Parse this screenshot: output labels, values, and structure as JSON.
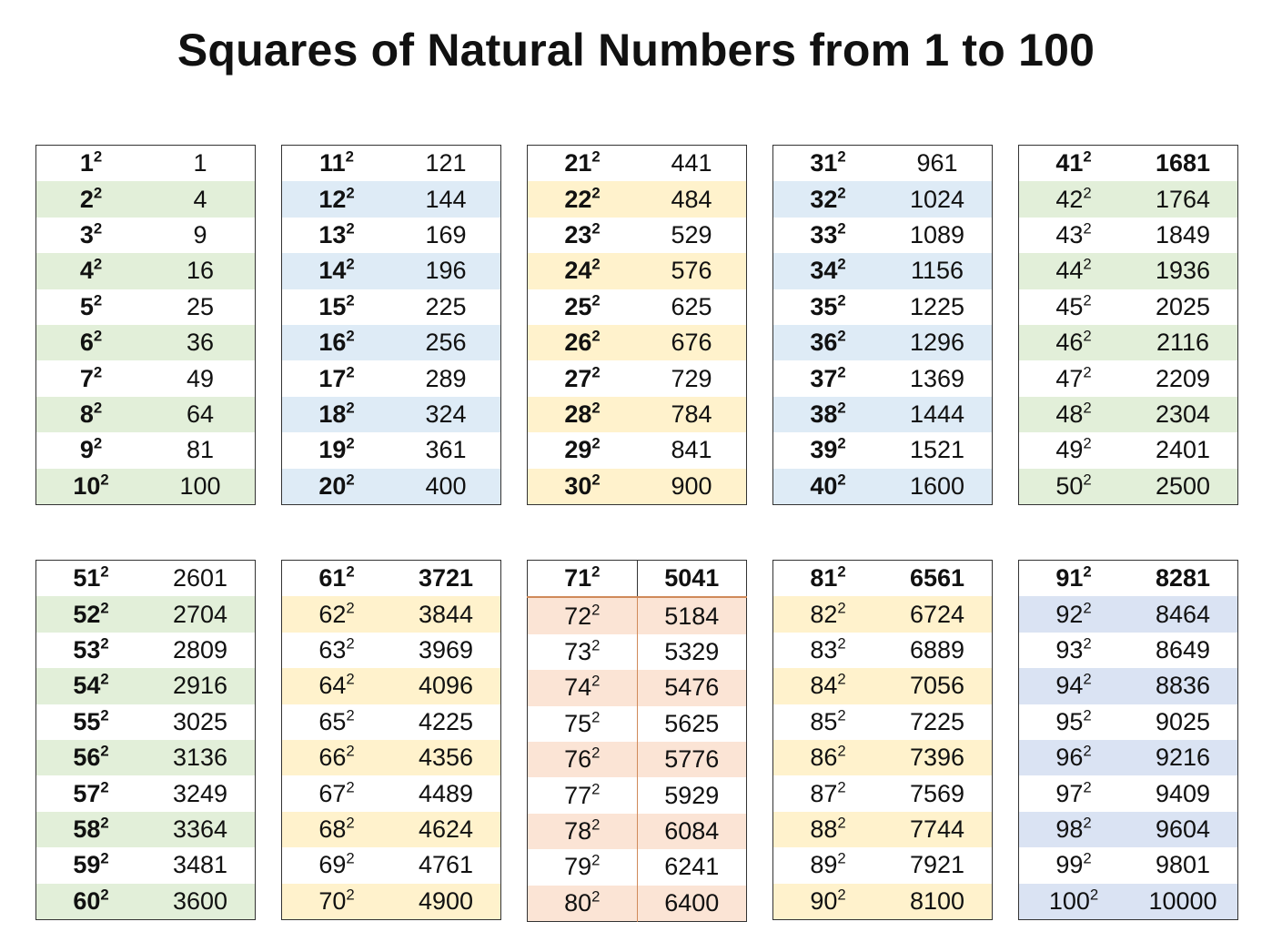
{
  "title": "Squares of Natural Numbers from 1 to 100",
  "colors": {
    "green": "#e2efd9",
    "blue": "#deebf6",
    "yellow": "#fff2cc",
    "salmon": "#fbe4d5"
  },
  "tables": [
    {
      "stripe": "#e2efd9",
      "boldnums": true,
      "rows": [
        [
          "1",
          "2",
          "1"
        ],
        [
          "2",
          "2",
          "4"
        ],
        [
          "3",
          "2",
          "9"
        ],
        [
          "4",
          "2",
          "16"
        ],
        [
          "5",
          "2",
          "25"
        ],
        [
          "6",
          "2",
          "36"
        ],
        [
          "7",
          "2",
          "49"
        ],
        [
          "8",
          "2",
          "64"
        ],
        [
          "9",
          "2",
          "81"
        ],
        [
          "10",
          "2",
          "100"
        ]
      ]
    },
    {
      "stripe": "#deebf6",
      "boldnums": true,
      "rows": [
        [
          "11",
          "2",
          "121"
        ],
        [
          "12",
          "2",
          "144"
        ],
        [
          "13",
          "2",
          "169"
        ],
        [
          "14",
          "2",
          "196"
        ],
        [
          "15",
          "2",
          "225"
        ],
        [
          "16",
          "2",
          "256"
        ],
        [
          "17",
          "2",
          "289"
        ],
        [
          "18",
          "2",
          "324"
        ],
        [
          "19",
          "2",
          "361"
        ],
        [
          "20",
          "2",
          "400"
        ]
      ]
    },
    {
      "stripe": "#fff2cc",
      "boldnums": true,
      "rows": [
        [
          "21",
          "2",
          "441"
        ],
        [
          "22",
          "2",
          "484"
        ],
        [
          "23",
          "2",
          "529"
        ],
        [
          "24",
          "2",
          "576"
        ],
        [
          "25",
          "2",
          "625"
        ],
        [
          "26",
          "2",
          "676"
        ],
        [
          "27",
          "2",
          "729"
        ],
        [
          "28",
          "2",
          "784"
        ],
        [
          "29",
          "2",
          "841"
        ],
        [
          "30",
          "2",
          "900"
        ]
      ]
    },
    {
      "stripe": "#deebf6",
      "boldnums": true,
      "rows": [
        [
          "31",
          "2",
          "961"
        ],
        [
          "32",
          "2",
          "1024"
        ],
        [
          "33",
          "2",
          "1089"
        ],
        [
          "34",
          "2",
          "1156"
        ],
        [
          "35",
          "2",
          "1225"
        ],
        [
          "36",
          "2",
          "1296"
        ],
        [
          "37",
          "2",
          "1369"
        ],
        [
          "38",
          "2",
          "1444"
        ],
        [
          "39",
          "2",
          "1521"
        ],
        [
          "40",
          "2",
          "1600"
        ]
      ]
    },
    {
      "stripe": "#e2efd9",
      "boldnums": false,
      "boldhdr": true,
      "rows": [
        [
          "41",
          "2",
          "1681"
        ],
        [
          "42",
          "2",
          "1764"
        ],
        [
          "43",
          "2",
          "1849"
        ],
        [
          "44",
          "2",
          "1936"
        ],
        [
          "45",
          "2",
          "2025"
        ],
        [
          "46",
          "2",
          "2116"
        ],
        [
          "47",
          "2",
          "2209"
        ],
        [
          "48",
          "2",
          "2304"
        ],
        [
          "49",
          "2",
          "2401"
        ],
        [
          "50",
          "2",
          "2500"
        ]
      ]
    },
    {
      "stripe": "#e2efd9",
      "boldnums": true,
      "rows": [
        [
          "51",
          "2",
          "2601"
        ],
        [
          "52",
          "2",
          "2704"
        ],
        [
          "53",
          "2",
          "2809"
        ],
        [
          "54",
          "2",
          "2916"
        ],
        [
          "55",
          "2",
          "3025"
        ],
        [
          "56",
          "2",
          "3136"
        ],
        [
          "57",
          "2",
          "3249"
        ],
        [
          "58",
          "2",
          "3364"
        ],
        [
          "59",
          "2",
          "3481"
        ],
        [
          "60",
          "2",
          "3600"
        ]
      ]
    },
    {
      "stripe": "#fff2cc",
      "boldnums": false,
      "boldhdr": true,
      "rows": [
        [
          "61",
          "2",
          "3721"
        ],
        [
          "62",
          "2",
          "3844"
        ],
        [
          "63",
          "2",
          "3969"
        ],
        [
          "64",
          "2",
          "4096"
        ],
        [
          "65",
          "2",
          "4225"
        ],
        [
          "66",
          "2",
          "4356"
        ],
        [
          "67",
          "2",
          "4489"
        ],
        [
          "68",
          "2",
          "4624"
        ],
        [
          "69",
          "2",
          "4761"
        ],
        [
          "70",
          "2",
          "4900"
        ]
      ]
    },
    {
      "stripe": "#fbe4d5",
      "boldnums": false,
      "boldhdr": true,
      "sep": true,
      "rows": [
        [
          "71",
          "2",
          "5041"
        ],
        [
          "72",
          "2",
          "5184"
        ],
        [
          "73",
          "2",
          "5329"
        ],
        [
          "74",
          "2",
          "5476"
        ],
        [
          "75",
          "2",
          "5625"
        ],
        [
          "76",
          "2",
          "5776"
        ],
        [
          "77",
          "2",
          "5929"
        ],
        [
          "78",
          "2",
          "6084"
        ],
        [
          "79",
          "2",
          "6241"
        ],
        [
          "80",
          "2",
          "6400"
        ]
      ]
    },
    {
      "stripe": "#fff2cc",
      "boldnums": false,
      "boldhdr": true,
      "rows": [
        [
          "81",
          "2",
          "6561"
        ],
        [
          "82",
          "2",
          "6724"
        ],
        [
          "83",
          "2",
          "6889"
        ],
        [
          "84",
          "2",
          "7056"
        ],
        [
          "85",
          "2",
          "7225"
        ],
        [
          "86",
          "2",
          "7396"
        ],
        [
          "87",
          "2",
          "7569"
        ],
        [
          "88",
          "2",
          "7744"
        ],
        [
          "89",
          "2",
          "7921"
        ],
        [
          "90",
          "2",
          "8100"
        ]
      ]
    },
    {
      "stripe": "#dae3f3",
      "boldnums": false,
      "boldhdr": true,
      "rows": [
        [
          "91",
          "2",
          "8281"
        ],
        [
          "92",
          "2",
          "8464"
        ],
        [
          "93",
          "2",
          "8649"
        ],
        [
          "94",
          "2",
          "8836"
        ],
        [
          "95",
          "2",
          "9025"
        ],
        [
          "96",
          "2",
          "9216"
        ],
        [
          "97",
          "2",
          "9409"
        ],
        [
          "98",
          "2",
          "9604"
        ],
        [
          "99",
          "2",
          "9801"
        ],
        [
          "100",
          "2",
          "10000"
        ]
      ]
    }
  ]
}
